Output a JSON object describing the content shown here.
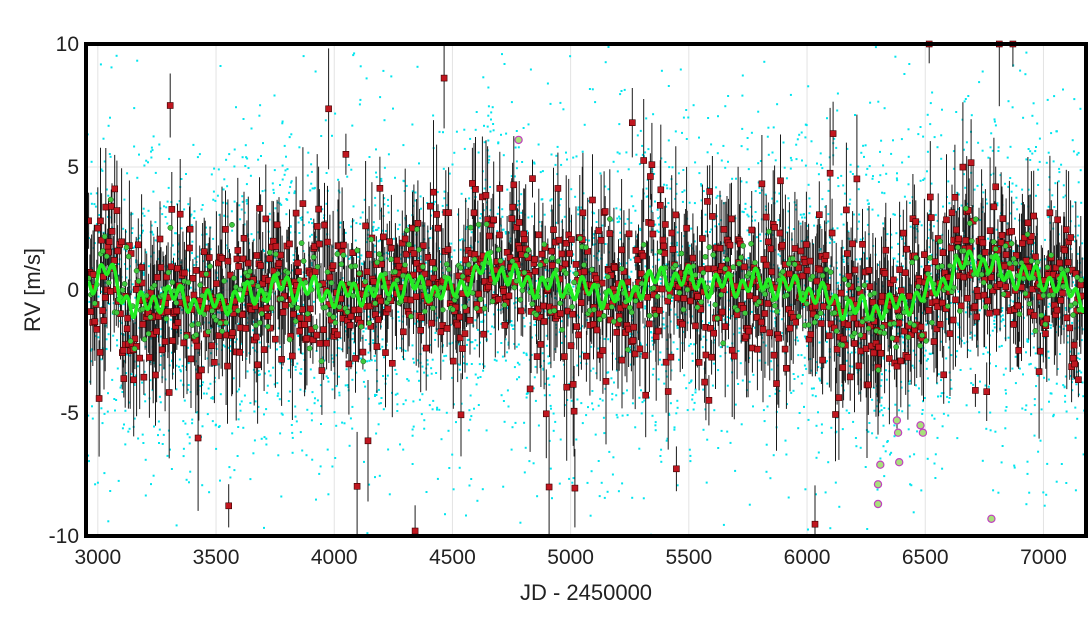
{
  "chart_data": {
    "type": "scatter",
    "title": "",
    "xlabel": "JD - 2450000",
    "ylabel": "RV [m/s]",
    "xlim": [
      2950,
      7180
    ],
    "ylim": [
      -10,
      10
    ],
    "xticks": [
      "3000",
      "3500",
      "4000",
      "4500",
      "5000",
      "5500",
      "6000",
      "6500",
      "7000"
    ],
    "yticks": [
      "10",
      "5",
      "0",
      "-5",
      "-10"
    ],
    "grid": true,
    "legend": "none",
    "colors": {
      "raw": "#00e5ee",
      "binned": "#1a1a1a",
      "binned_marker": "#c0161f",
      "model": "#22ee22",
      "model_marker": "#3ec83e",
      "highlight_marker": "#c040c0"
    },
    "series_summary": [
      {
        "desc": "raw",
        "x_range": [
          2950,
          7180
        ],
        "y_range": [
          -10,
          10
        ],
        "approx_count": 4000
      },
      {
        "desc": "binned_with_errorbars",
        "x_range": [
          2960,
          7170
        ],
        "y_range": [
          -9.5,
          9.9
        ],
        "approx_count": 1100
      },
      {
        "desc": "model_curve",
        "x_range": [
          2960,
          7170
        ],
        "y_range": [
          -1.5,
          1.6
        ],
        "mean": 0
      }
    ],
    "model_anchor_points": {
      "x": [
        2960,
        3050,
        3150,
        3300,
        3450,
        3600,
        3800,
        4000,
        4100,
        4300,
        4500,
        4650,
        4800,
        5000,
        5200,
        5400,
        5600,
        5800,
        6000,
        6200,
        6350,
        6500,
        6700,
        6850,
        7000,
        7170
      ],
      "y": [
        0.3,
        0.8,
        -0.8,
        -0.2,
        -0.6,
        -0.3,
        0.2,
        -0.2,
        -0.1,
        0.2,
        -0.1,
        1.0,
        0.3,
        0.1,
        -0.3,
        0.6,
        0.2,
        0.3,
        0.0,
        -0.8,
        -0.7,
        -0.2,
        1.3,
        0.6,
        0.5,
        -0.3
      ]
    },
    "outliers": {
      "x": [
        6300,
        6300,
        6310,
        6380,
        6385,
        6390,
        6480,
        6490,
        6780,
        4780
      ],
      "y": [
        -7.9,
        -8.7,
        -7.1,
        -5.3,
        -5.8,
        -7.0,
        -5.5,
        -5.8,
        -9.3,
        6.1
      ]
    }
  }
}
